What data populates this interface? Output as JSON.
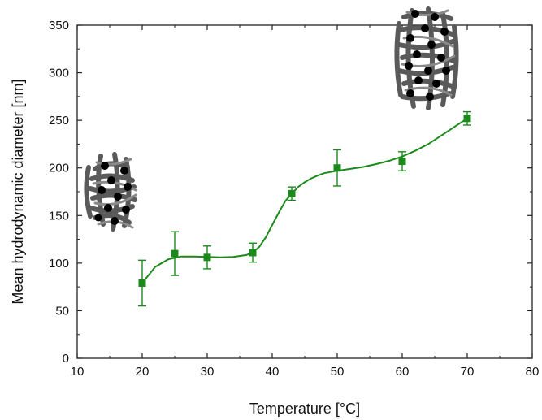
{
  "chart_data": {
    "type": "scatter",
    "xlabel": "Temperature [°C]",
    "ylabel": "Mean hydrodynamic diameter [nm]",
    "xlim": [
      10,
      80
    ],
    "ylim": [
      0,
      350
    ],
    "xticks": [
      10,
      20,
      30,
      40,
      50,
      60,
      70,
      80
    ],
    "yticks": [
      0,
      50,
      100,
      150,
      200,
      250,
      300,
      350
    ],
    "grid": false,
    "legend": "none",
    "series": [
      {
        "color": "#1a8a1a",
        "marker": "square",
        "fit_line": "smooth",
        "points": [
          {
            "x": 20,
            "y": 79,
            "err": 24
          },
          {
            "x": 25,
            "y": 110,
            "err": 23
          },
          {
            "x": 30,
            "y": 106,
            "err": 12
          },
          {
            "x": 37,
            "y": 111,
            "err": 10
          },
          {
            "x": 43,
            "y": 173,
            "err": 7
          },
          {
            "x": 50,
            "y": 200,
            "err": 19
          },
          {
            "x": 60,
            "y": 207,
            "err": 10
          },
          {
            "x": 70,
            "y": 252,
            "err": 7
          }
        ]
      }
    ],
    "fit_curve": [
      [
        20,
        79
      ],
      [
        22,
        96
      ],
      [
        24,
        104
      ],
      [
        26,
        107
      ],
      [
        28,
        107
      ],
      [
        30,
        106.5
      ],
      [
        32,
        106
      ],
      [
        34,
        106.5
      ],
      [
        36,
        108.5
      ],
      [
        37,
        111
      ],
      [
        38,
        117
      ],
      [
        39,
        127
      ],
      [
        40,
        140
      ],
      [
        41,
        153
      ],
      [
        42,
        165
      ],
      [
        43,
        173
      ],
      [
        44,
        180
      ],
      [
        45,
        185
      ],
      [
        46,
        189
      ],
      [
        47,
        192
      ],
      [
        48,
        194.5
      ],
      [
        50,
        197
      ],
      [
        52,
        199
      ],
      [
        54,
        201
      ],
      [
        56,
        204
      ],
      [
        58,
        207.5
      ],
      [
        60,
        212
      ],
      [
        62,
        218
      ],
      [
        64,
        225
      ],
      [
        66,
        234
      ],
      [
        68,
        243
      ],
      [
        70,
        252
      ]
    ],
    "illustrations": [
      "small-particle-cluster-icon",
      "large-particle-cluster-icon"
    ]
  }
}
